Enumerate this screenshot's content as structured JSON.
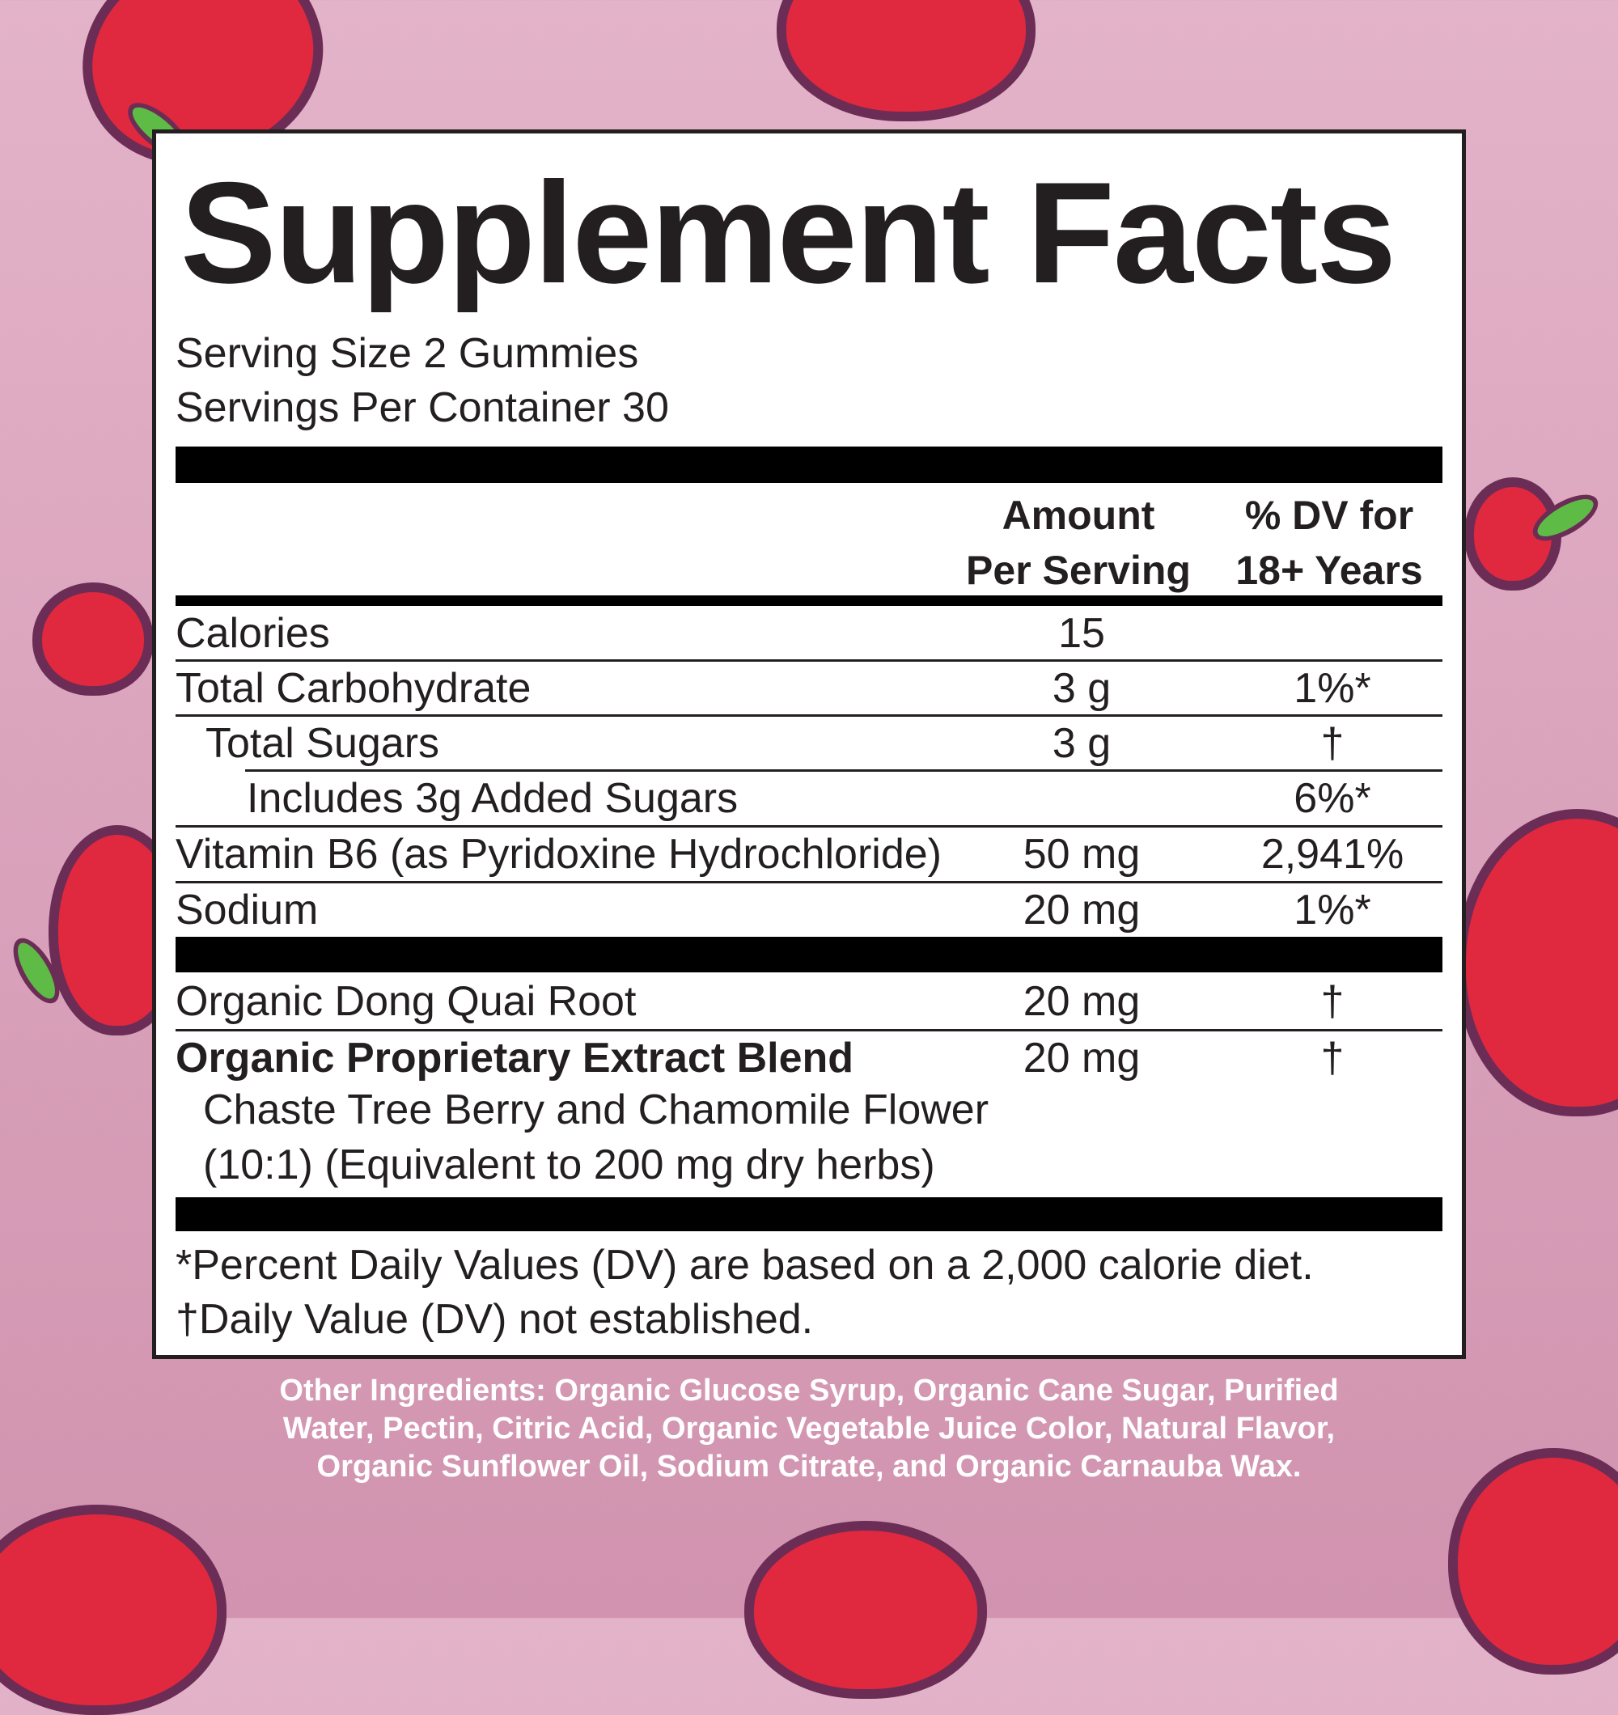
{
  "title": "Supplement Facts",
  "serving_size": "Serving Size 2 Gummies",
  "servings_per_container": "Servings Per Container 30",
  "header": {
    "amount_line1": "Amount",
    "amount_line2": "Per Serving",
    "dv_line1": "% DV for",
    "dv_line2": "18+ Years"
  },
  "nutrients": [
    {
      "label": "Calories",
      "amount": "15",
      "dv": ""
    },
    {
      "label": "Total Carbohydrate",
      "amount": "3 g",
      "dv": "1%*"
    },
    {
      "label": "Total Sugars",
      "amount": "3 g",
      "dv": "†"
    },
    {
      "label": "Includes 3g Added Sugars",
      "amount": "",
      "dv": "6%*"
    },
    {
      "label": "Vitamin B6 (as Pyridoxine Hydrochloride)",
      "amount": "50 mg",
      "dv": "2,941%"
    },
    {
      "label": "Sodium",
      "amount": "20 mg",
      "dv": "1%*"
    }
  ],
  "botanicals": [
    {
      "label": "Organic Dong Quai Root",
      "amount": "20 mg",
      "dv": "†"
    },
    {
      "label": "Organic Proprietary Extract Blend",
      "amount": "20 mg",
      "dv": "†"
    }
  ],
  "blend_detail_line1": "Chaste Tree Berry and Chamomile Flower",
  "blend_detail_line2": "(10:1) (Equivalent to 200 mg dry herbs)",
  "footnote1": "*Percent Daily Values (DV) are based on a 2,000 calorie diet.",
  "footnote2": "†Daily Value (DV) not established.",
  "other_ingredients": {
    "line1": "Other Ingredients: Organic Glucose Syrup, Organic Cane Sugar, Purified",
    "line2": "Water, Pectin, Citric Acid, Organic Vegetable Juice Color, Natural Flavor,",
    "line3": "Organic Sunflower Oil, Sodium Citrate, and Organic Carnauba Wax."
  },
  "colors": {
    "background": "#dca4bd",
    "strawberry": "#e0283f",
    "outline": "#6b2d55",
    "leaf": "#5dbb46"
  }
}
